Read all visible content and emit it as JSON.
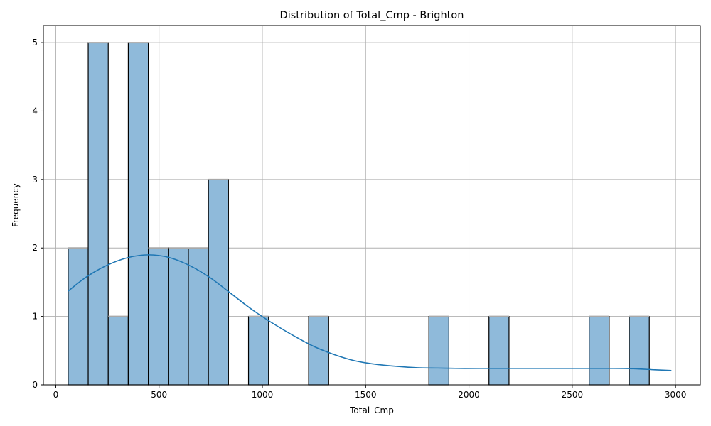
{
  "chart_data": {
    "type": "bar",
    "title": "Distribution of Total_Cmp - Brighton",
    "xlabel": "Total_Cmp",
    "ylabel": "Frequency",
    "xlim": [
      -60,
      3120
    ],
    "ylim": [
      0,
      5.25
    ],
    "xticks": [
      0,
      500,
      1000,
      1500,
      2000,
      2500,
      3000
    ],
    "xtick_labels": [
      "0",
      "500",
      "1000",
      "1500",
      "2000",
      "2500",
      "3000"
    ],
    "yticks": [
      0,
      1,
      2,
      3,
      4,
      5
    ],
    "ytick_labels": [
      "0",
      "1",
      "2",
      "3",
      "4",
      "5"
    ],
    "grid": true,
    "bins": {
      "start": 60,
      "width": 97,
      "counts": [
        2,
        5,
        1,
        5,
        2,
        2,
        2,
        3,
        0,
        1,
        0,
        0,
        1,
        0,
        0,
        0,
        0,
        0,
        1,
        0,
        0,
        1,
        0,
        0,
        0,
        0,
        1,
        0,
        1,
        0
      ]
    },
    "kde": {
      "x": [
        60,
        150,
        250,
        350,
        450,
        550,
        650,
        750,
        850,
        950,
        1050,
        1150,
        1250,
        1350,
        1450,
        1550,
        1650,
        1750,
        1850,
        1950,
        2050,
        2250,
        2500,
        2700,
        2800,
        2900,
        2980
      ],
      "y": [
        1.37,
        1.58,
        1.75,
        1.86,
        1.9,
        1.86,
        1.74,
        1.56,
        1.33,
        1.1,
        0.9,
        0.72,
        0.56,
        0.44,
        0.35,
        0.3,
        0.27,
        0.25,
        0.245,
        0.24,
        0.24,
        0.24,
        0.24,
        0.24,
        0.235,
        0.22,
        0.21
      ]
    },
    "colors": {
      "bar_fill": "#8fbada",
      "bar_edge": "#000000",
      "kde_line": "#1f77b4",
      "grid": "#b0b0b0"
    }
  }
}
